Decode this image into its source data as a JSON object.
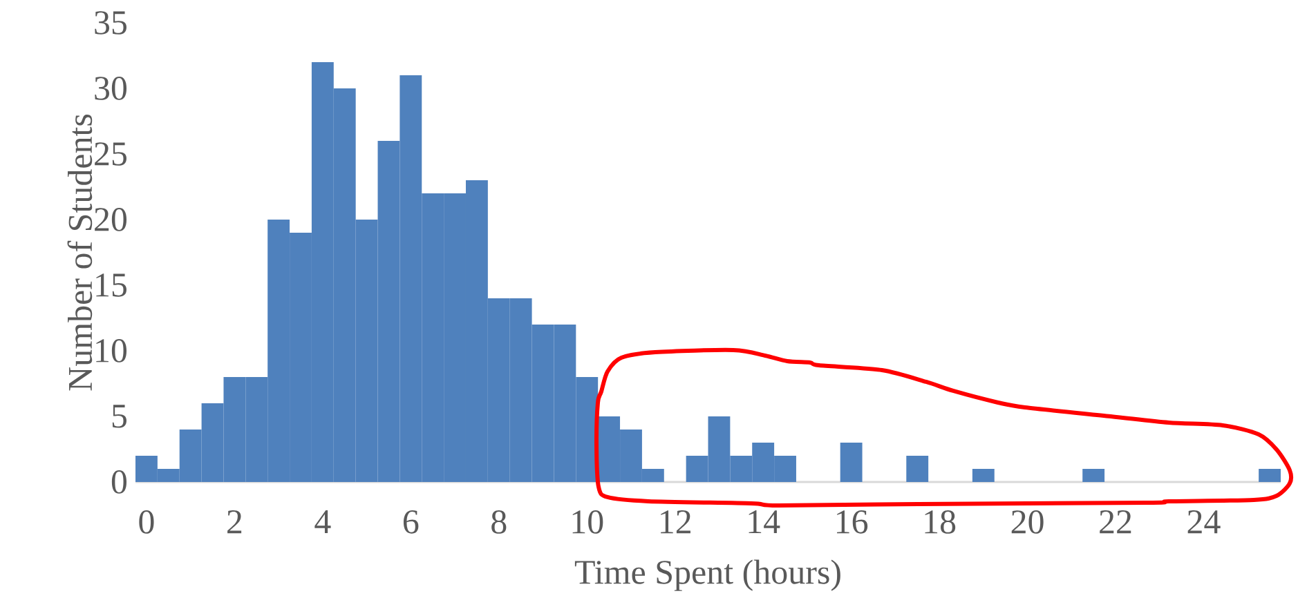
{
  "chart_data": {
    "type": "bar",
    "xlabel": "Time Spent (hours)",
    "ylabel": "Number of Students",
    "categories": [
      "0",
      null,
      null,
      null,
      "2",
      null,
      null,
      null,
      "4",
      null,
      null,
      null,
      "6",
      null,
      null,
      null,
      "8",
      null,
      null,
      null,
      "10",
      null,
      null,
      null,
      "12",
      null,
      null,
      null,
      "14",
      null,
      null,
      null,
      "16",
      null,
      null,
      null,
      "18",
      null,
      null,
      null,
      "20",
      null,
      null,
      null,
      "22",
      null,
      null,
      null,
      "24",
      null,
      null,
      null
    ],
    "values": [
      2,
      1,
      4,
      6,
      8,
      8,
      20,
      19,
      32,
      30,
      20,
      26,
      31,
      22,
      22,
      23,
      14,
      14,
      12,
      12,
      8,
      5,
      4,
      1,
      0,
      2,
      5,
      2,
      3,
      2,
      0,
      0,
      3,
      0,
      0,
      2,
      0,
      0,
      1,
      0,
      0,
      0,
      0,
      1,
      0,
      0,
      0,
      0,
      0,
      0,
      0,
      1
    ],
    "color": "#4f81bd",
    "ylim": [
      0,
      35
    ],
    "yticks": [
      0,
      5,
      10,
      15,
      20,
      25,
      30,
      35
    ],
    "grid": false
  }
}
